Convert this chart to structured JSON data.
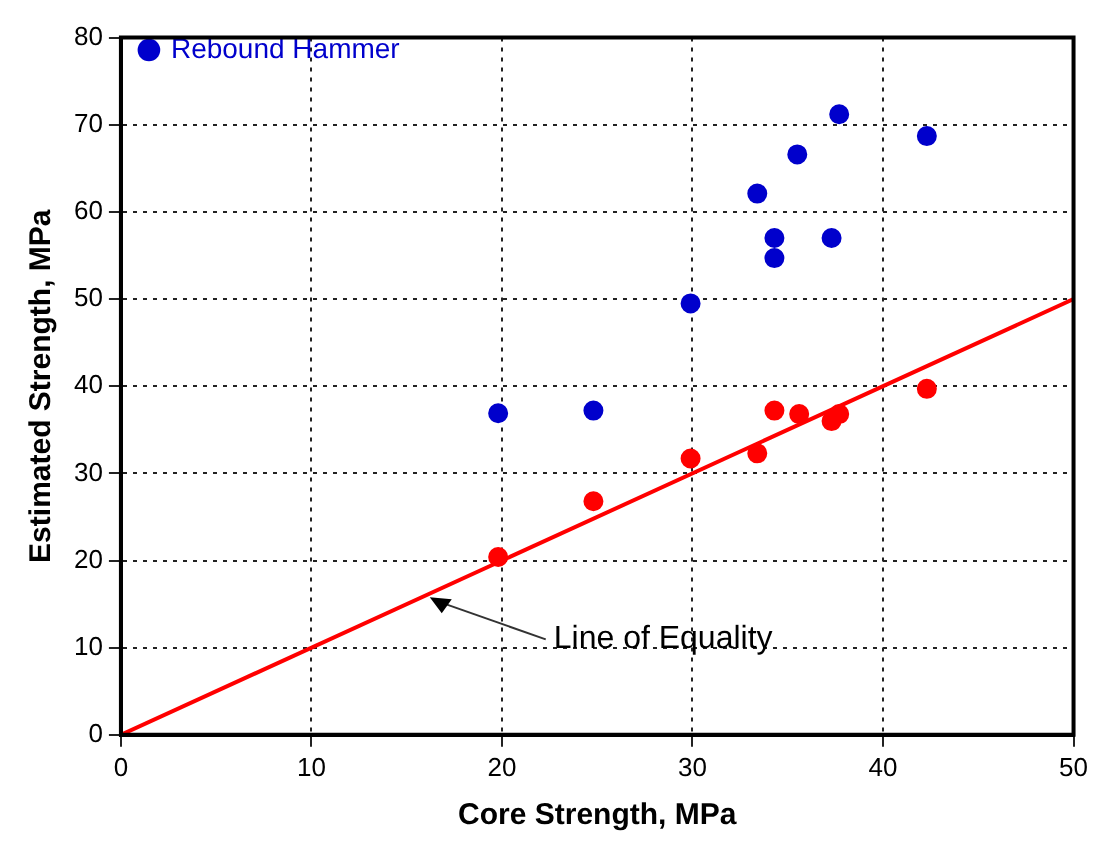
{
  "chart_data": {
    "type": "scatter",
    "xlabel": "Core Strength, MPa",
    "ylabel": "Estimated Strength, MPa",
    "xlim": [
      0,
      50
    ],
    "xticks": [
      0,
      10,
      20,
      30,
      40,
      50
    ],
    "ylim": [
      0,
      80
    ],
    "yticks": [
      0,
      10,
      20,
      30,
      40,
      50,
      60,
      70,
      80
    ],
    "grid": true,
    "legend": "top left",
    "marker": "circle",
    "series": [
      {
        "color": "#ff0000",
        "x": [
          19.8,
          24.8,
          29.9,
          33.4,
          34.3,
          35.6,
          37.3,
          37.7,
          42.3
        ],
        "values": [
          20.4,
          26.8,
          31.7,
          32.3,
          37.2,
          36.8,
          36.0,
          36.8,
          39.7
        ]
      },
      {
        "name": "Rebound Hammer",
        "color": "#0000cc",
        "x": [
          19.8,
          24.8,
          29.9,
          33.4,
          35.5,
          37.7,
          42.3,
          34.3,
          34.3,
          37.3
        ],
        "values": [
          36.9,
          37.2,
          49.5,
          62.1,
          66.6,
          71.2,
          68.7,
          57.0,
          54.7,
          57.0
        ]
      },
      {
        "type": "line",
        "color": "#ff0000",
        "x": [
          0,
          50
        ],
        "values": [
          0,
          50
        ],
        "marker": "none"
      }
    ],
    "annotations": [
      {
        "text": "Line of Equality",
        "x": 16,
        "y": 16
      }
    ]
  }
}
